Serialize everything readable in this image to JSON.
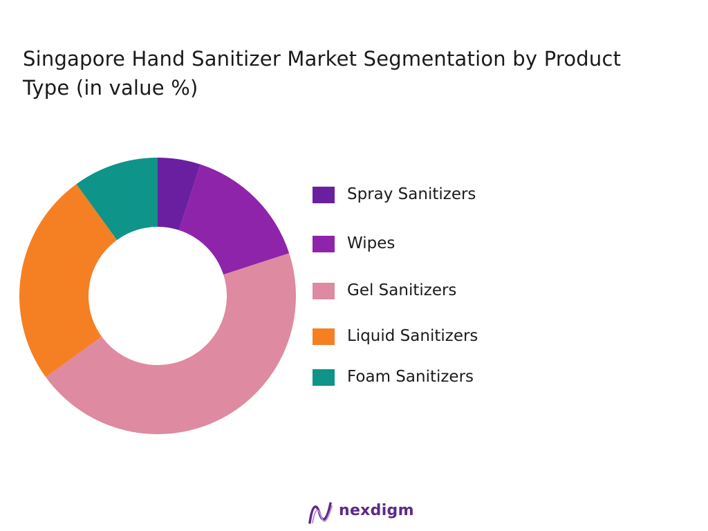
{
  "chart_data": {
    "type": "pie",
    "title": "Singapore Hand Sanitizer Market Segmentation by Product Type  (in value %)",
    "donut": true,
    "legend_position": "right",
    "categories": [
      "Spray Sanitizers",
      "Wipes",
      "Gel Sanitizers",
      "Liquid Sanitizers",
      "Foam Sanitizers"
    ],
    "values": [
      5,
      15,
      45,
      25,
      10
    ],
    "colors": [
      "#6a1fa0",
      "#8e24aa",
      "#de8aa0",
      "#f58024",
      "#0e9488"
    ]
  },
  "logo": {
    "text": "nexdigm",
    "color": "#5b2a86"
  }
}
